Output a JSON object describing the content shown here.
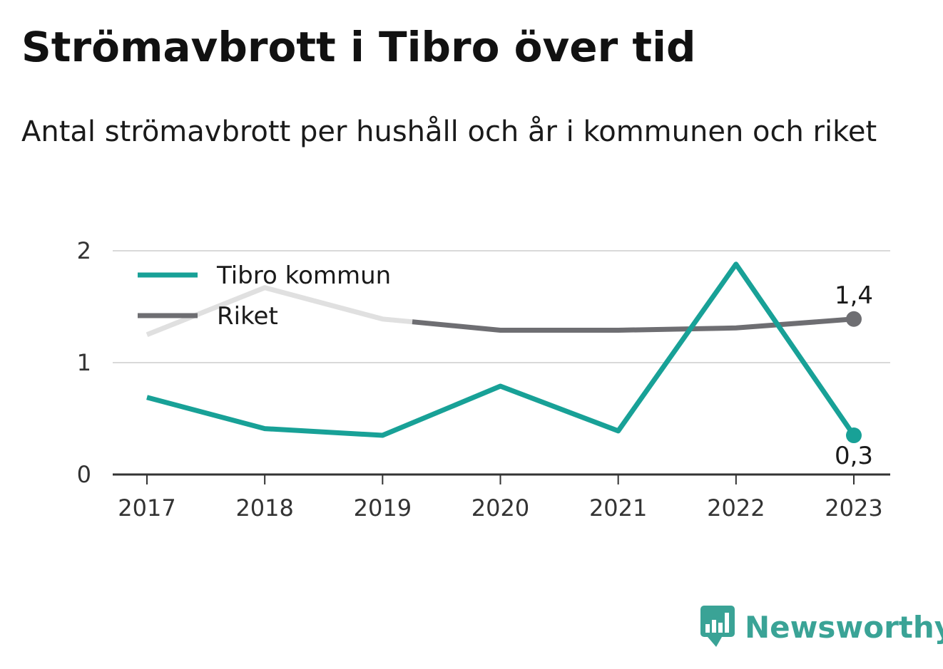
{
  "title": "Strömavbrott i Tibro över tid",
  "subtitle": "Antal strömavbrott per hushåll och år i kommunen och riket",
  "brand": {
    "name": "Newsworthy",
    "icon": "newsworthy-logo-icon",
    "color": "#3aa396"
  },
  "chart_data": {
    "type": "line",
    "title": "Strömavbrott i Tibro över tid",
    "subtitle": "Antal strömavbrott per hushåll och år i kommunen och riket",
    "x": [
      "2017",
      "2018",
      "2019",
      "2020",
      "2021",
      "2022",
      "2023"
    ],
    "xlabel": "",
    "ylabel": "",
    "ylim": [
      0,
      2
    ],
    "yticks": [
      0,
      1,
      2
    ],
    "grid": true,
    "legend_position": "top-left",
    "series": [
      {
        "name": "Tibro kommun",
        "color": "#18a197",
        "values": [
          0.69,
          0.41,
          0.35,
          0.79,
          0.39,
          1.88,
          0.35
        ]
      },
      {
        "name": "Riket",
        "color": "#6e6e72",
        "faded_color": "#e0e0e0",
        "values": [
          1.25,
          1.67,
          1.39,
          1.29,
          1.29,
          1.31,
          1.39
        ]
      }
    ],
    "end_labels": [
      "0,3",
      "1,4"
    ]
  }
}
